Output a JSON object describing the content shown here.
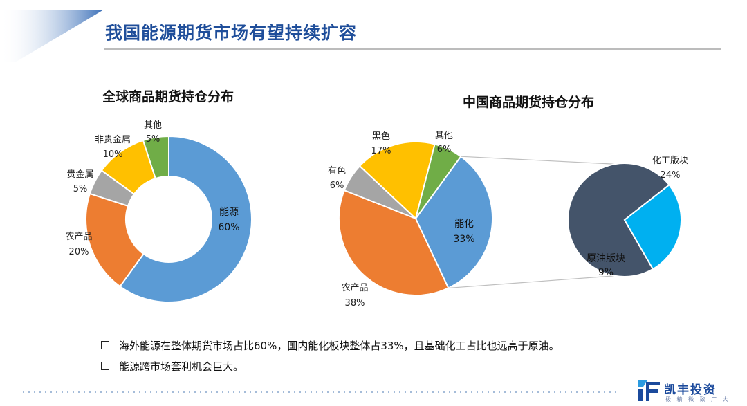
{
  "slide": {
    "title": "我国能源期货市场有望持续扩容"
  },
  "colors": {
    "title": "#1f4e9a",
    "energy_blue": "#5b9bd5",
    "orange": "#ed7d31",
    "gray": "#a5a5a5",
    "yellow": "#ffc000",
    "green": "#70ad47",
    "dark_slate": "#44546a",
    "cyan": "#00b0f0"
  },
  "chart_data": [
    {
      "type": "pie",
      "variant": "donut",
      "title": "全球商品期货持仓分布",
      "slices": [
        {
          "label": "能源",
          "value": 60,
          "value_text": "60%",
          "color": "#5b9bd5"
        },
        {
          "label": "农产品",
          "value": 20,
          "value_text": "20%",
          "color": "#ed7d31"
        },
        {
          "label": "贵金属",
          "value": 5,
          "value_text": "5%",
          "color": "#a5a5a5"
        },
        {
          "label": "非贵金属",
          "value": 10,
          "value_text": "10%",
          "color": "#ffc000"
        },
        {
          "label": "其他",
          "value": 5,
          "value_text": "5%",
          "color": "#70ad47"
        }
      ]
    },
    {
      "type": "pie",
      "variant": "pie-of-pie",
      "title": "中国商品期货持仓分布",
      "slices": [
        {
          "label": "能化",
          "value": 33,
          "value_text": "33%",
          "color": "#5b9bd5"
        },
        {
          "label": "农产品",
          "value": 38,
          "value_text": "38%",
          "color": "#ed7d31"
        },
        {
          "label": "有色",
          "value": 6,
          "value_text": "6%",
          "color": "#a5a5a5"
        },
        {
          "label": "黑色",
          "value": 17,
          "value_text": "17%",
          "color": "#ffc000"
        },
        {
          "label": "其他",
          "value": 6,
          "value_text": "6%",
          "color": "#70ad47"
        }
      ],
      "breakdown_of": "能化",
      "breakdown": [
        {
          "label": "化工版块",
          "value": 24,
          "value_text": "24%",
          "color": "#44546a"
        },
        {
          "label": "原油版块",
          "value": 9,
          "value_text": "9%",
          "color": "#00b0f0"
        }
      ]
    }
  ],
  "bullets": [
    "海外能源在整体期货市场占比60%，国内能化板块整体占33%，且基础化工占比也远高于原油。",
    "能源跨市场套利机会巨大。"
  ],
  "logo": {
    "name": "凯丰投资",
    "slogan": "极 精 微 致 广 大"
  }
}
